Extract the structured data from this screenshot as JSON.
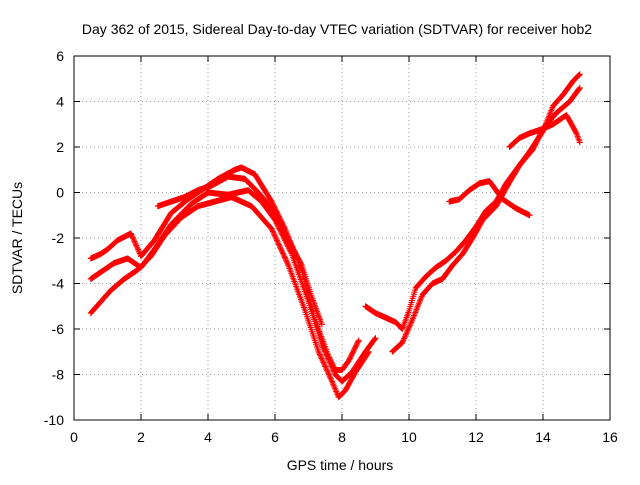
{
  "chart_data": {
    "type": "scatter",
    "title": "Day 362 of 2015, Sidereal Day-to-day VTEC variation (SDTVAR) for receiver hob2",
    "xlabel": "GPS time / hours",
    "ylabel": "SDTVAR / TECUs",
    "xlim": [
      0,
      16
    ],
    "ylim": [
      -10,
      6
    ],
    "x_ticks": [
      0,
      2,
      4,
      6,
      8,
      10,
      12,
      14,
      16
    ],
    "y_ticks": [
      -10,
      -8,
      -6,
      -4,
      -2,
      0,
      2,
      4,
      6
    ],
    "x_tick_labels": [
      "0",
      "2",
      "4",
      "6",
      "8",
      "10",
      "12",
      "14",
      "16"
    ],
    "y_tick_labels": [
      "-10",
      "-8",
      "-6",
      "-4",
      "-2",
      "0",
      "2",
      "4",
      "6"
    ],
    "grid": true,
    "marker": "+",
    "color": "#ff0000",
    "series": [
      {
        "name": "track-1",
        "x": [
          0.5,
          0.8,
          1.0,
          1.3,
          1.7,
          2.0,
          2.4,
          2.9,
          3.4,
          3.8,
          4.3,
          4.8,
          5.0,
          5.4,
          5.9,
          6.3,
          6.8,
          7.2,
          7.6,
          7.8,
          8.0,
          8.2,
          8.5
        ],
        "y": [
          -2.9,
          -2.7,
          -2.5,
          -2.1,
          -1.8,
          -2.8,
          -2.1,
          -0.9,
          -0.3,
          0.1,
          0.6,
          1.0,
          1.1,
          0.8,
          -0.4,
          -1.6,
          -3.4,
          -5.6,
          -7.2,
          -7.8,
          -7.8,
          -7.4,
          -6.5
        ]
      },
      {
        "name": "track-2",
        "x": [
          0.5,
          0.9,
          1.2,
          1.6,
          2.0,
          2.4,
          2.9,
          3.5,
          4.0,
          4.6,
          5.2,
          5.6,
          6.0,
          6.5,
          7.0,
          7.4,
          7.8,
          8.0,
          8.3,
          8.7,
          9.0
        ],
        "y": [
          -3.8,
          -3.4,
          -3.1,
          -2.9,
          -3.3,
          -2.5,
          -1.4,
          -0.5,
          0.0,
          -0.1,
          0.1,
          -0.4,
          -1.2,
          -2.7,
          -4.8,
          -6.7,
          -8.0,
          -8.3,
          -7.9,
          -7.0,
          -6.4
        ]
      },
      {
        "name": "track-3",
        "x": [
          0.5,
          0.8,
          1.1,
          1.5,
          1.9,
          2.3,
          2.7,
          3.2,
          3.7,
          4.2,
          4.7,
          5.3,
          5.9,
          6.4,
          6.9,
          7.3,
          7.7,
          7.9,
          8.1,
          8.4,
          8.8
        ],
        "y": [
          -5.3,
          -4.8,
          -4.3,
          -3.8,
          -3.4,
          -2.8,
          -1.9,
          -1.1,
          -0.6,
          -0.4,
          -0.2,
          -0.6,
          -1.6,
          -3.2,
          -5.2,
          -7.0,
          -8.3,
          -9.0,
          -8.7,
          -7.9,
          -7.0
        ]
      },
      {
        "name": "track-4",
        "x": [
          2.5,
          2.9,
          3.3,
          3.7,
          4.1,
          4.6,
          5.1,
          5.5,
          5.9,
          6.3,
          6.8,
          7.1,
          7.4
        ],
        "y": [
          -0.6,
          -0.4,
          -0.2,
          0.1,
          0.3,
          0.7,
          0.6,
          0.0,
          -0.7,
          -1.8,
          -3.2,
          -4.6,
          -5.8
        ]
      },
      {
        "name": "track-5",
        "x": [
          8.7,
          9.0,
          9.3,
          9.6,
          9.8,
          10.0,
          10.2,
          10.5,
          10.8,
          11.1,
          11.4,
          11.7,
          12.0,
          12.3,
          12.6,
          12.9,
          13.2,
          13.6,
          14.0,
          14.3,
          14.6,
          14.9,
          15.1
        ],
        "y": [
          -5.0,
          -5.3,
          -5.5,
          -5.7,
          -6.0,
          -5.2,
          -4.2,
          -3.7,
          -3.3,
          -3.0,
          -2.6,
          -2.1,
          -1.5,
          -0.8,
          -0.4,
          0.4,
          1.0,
          1.8,
          2.7,
          3.8,
          4.3,
          4.9,
          5.2
        ]
      },
      {
        "name": "track-6",
        "x": [
          9.5,
          9.8,
          10.1,
          10.4,
          10.7,
          11.0,
          11.3,
          11.6,
          11.9,
          12.2,
          12.6,
          12.9,
          13.3,
          13.7,
          14.0,
          14.4,
          14.8,
          15.1
        ],
        "y": [
          -7.0,
          -6.6,
          -5.6,
          -4.5,
          -4.0,
          -3.8,
          -3.2,
          -2.7,
          -2.0,
          -1.2,
          -0.6,
          0.2,
          1.2,
          1.9,
          2.8,
          3.5,
          4.0,
          4.6
        ]
      },
      {
        "name": "track-7",
        "x": [
          11.2,
          11.5,
          11.8,
          12.1,
          12.4,
          12.8,
          13.2,
          13.6
        ],
        "y": [
          -0.4,
          -0.3,
          0.1,
          0.4,
          0.5,
          -0.3,
          -0.7,
          -1.0
        ]
      },
      {
        "name": "track-8",
        "x": [
          13.0,
          13.3,
          13.6,
          14.0,
          14.3,
          14.7,
          15.0,
          15.1
        ],
        "y": [
          2.0,
          2.4,
          2.6,
          2.8,
          3.0,
          3.4,
          2.6,
          2.2
        ]
      }
    ]
  }
}
